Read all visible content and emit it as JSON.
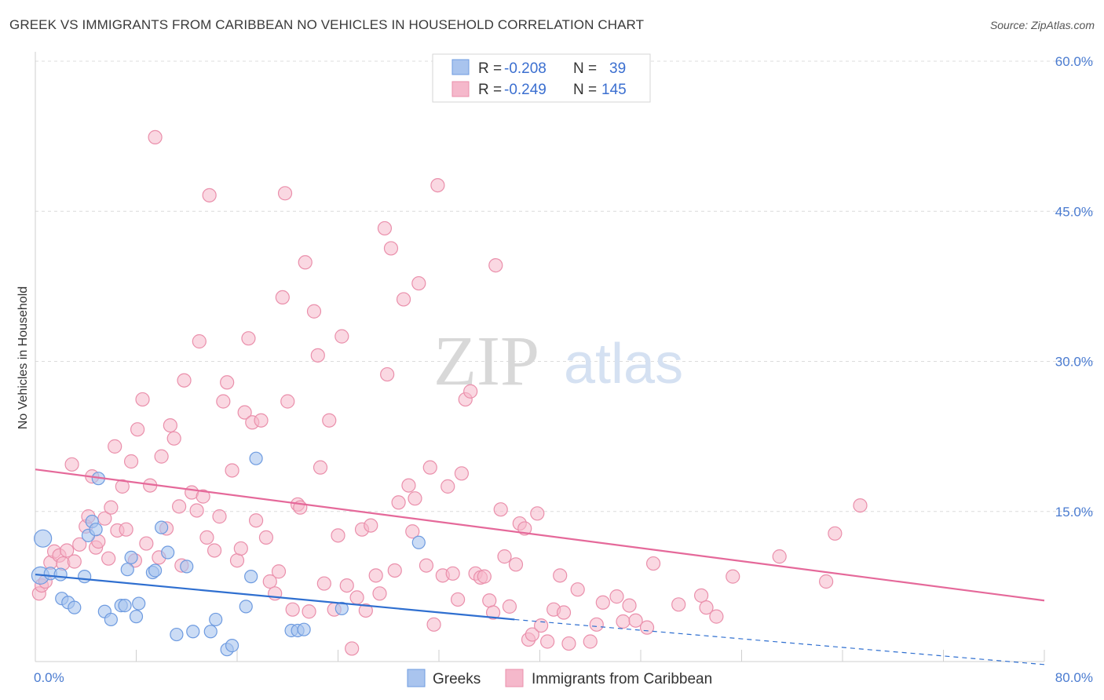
{
  "title": "GREEK VS IMMIGRANTS FROM CARIBBEAN NO VEHICLES IN HOUSEHOLD CORRELATION CHART",
  "source": "Source: ZipAtlas.com",
  "watermark": {
    "part1": "ZIP",
    "part2": "atlas"
  },
  "legend_box": {
    "rows": [
      {
        "r_label": "R = ",
        "r_value": "-0.208",
        "n_label": "N = ",
        "n_value": "39",
        "color": "#a9c4ee"
      },
      {
        "r_label": "R = ",
        "r_value": "-0.249",
        "n_label": "N = ",
        "n_value": "145",
        "color": "#f5b8cb"
      }
    ]
  },
  "bottom_legend": [
    {
      "label": "Greeks",
      "color": "#a9c4ee"
    },
    {
      "label": "Immigrants from Caribbean",
      "color": "#f5b8cb"
    }
  ],
  "chart_data": {
    "type": "scatter",
    "ylabel": "No Vehicles in Household",
    "xlim": [
      0,
      80
    ],
    "ylim": [
      0,
      60
    ],
    "x_tick_labels": [
      "0.0%",
      "80.0%"
    ],
    "y_tick_labels": [
      "15.0%",
      "30.0%",
      "45.0%",
      "60.0%"
    ],
    "y_ticks": [
      15,
      30,
      45,
      60
    ],
    "grid": "horizontal dashed",
    "colors": {
      "greeks_fill": "#a9c4ee",
      "greeks_stroke": "#6e9be0",
      "greeks_line": "#2f6fd0",
      "carib_fill": "#f5b8cb",
      "carib_stroke": "#ea8fab",
      "carib_line": "#e5699a",
      "tick_text": "#4a7bd0"
    },
    "series": [
      {
        "name": "Greeks",
        "points": [
          [
            0.6,
            12.3
          ],
          [
            0.4,
            8.6
          ],
          [
            1.2,
            8.8
          ],
          [
            2.0,
            8.7
          ],
          [
            2.1,
            6.3
          ],
          [
            2.6,
            5.9
          ],
          [
            3.1,
            5.4
          ],
          [
            3.9,
            8.5
          ],
          [
            4.2,
            12.6
          ],
          [
            4.5,
            14.0
          ],
          [
            4.8,
            13.2
          ],
          [
            5.0,
            18.3
          ],
          [
            5.5,
            5.0
          ],
          [
            6.0,
            4.2
          ],
          [
            6.8,
            5.6
          ],
          [
            7.1,
            5.6
          ],
          [
            7.3,
            9.2
          ],
          [
            7.6,
            10.4
          ],
          [
            8.0,
            4.5
          ],
          [
            8.2,
            5.8
          ],
          [
            9.3,
            8.9
          ],
          [
            9.5,
            9.1
          ],
          [
            10.0,
            13.4
          ],
          [
            10.5,
            10.9
          ],
          [
            11.2,
            2.7
          ],
          [
            12.0,
            9.5
          ],
          [
            12.5,
            3.0
          ],
          [
            13.9,
            3.0
          ],
          [
            14.3,
            4.2
          ],
          [
            15.2,
            1.2
          ],
          [
            15.6,
            1.6
          ],
          [
            16.7,
            5.5
          ],
          [
            17.1,
            8.5
          ],
          [
            17.5,
            20.3
          ],
          [
            20.3,
            3.1
          ],
          [
            20.8,
            3.1
          ],
          [
            21.3,
            3.2
          ],
          [
            24.3,
            5.3
          ],
          [
            30.4,
            11.9
          ]
        ],
        "trend": {
          "x": [
            0,
            38
          ],
          "y": [
            8.7,
            4.2
          ],
          "dashed_to": [
            80,
            -0.3
          ]
        }
      },
      {
        "name": "Immigrants from Caribbean",
        "points": [
          [
            0.3,
            6.8
          ],
          [
            0.5,
            7.6
          ],
          [
            0.8,
            8.0
          ],
          [
            1.2,
            9.9
          ],
          [
            1.5,
            11.0
          ],
          [
            1.9,
            10.6
          ],
          [
            2.2,
            9.8
          ],
          [
            2.5,
            11.1
          ],
          [
            2.9,
            19.7
          ],
          [
            3.1,
            10.0
          ],
          [
            3.5,
            11.7
          ],
          [
            4.0,
            13.5
          ],
          [
            4.2,
            14.5
          ],
          [
            4.5,
            18.5
          ],
          [
            4.8,
            11.4
          ],
          [
            5.0,
            12.0
          ],
          [
            5.5,
            14.3
          ],
          [
            5.8,
            10.3
          ],
          [
            6.0,
            15.4
          ],
          [
            6.3,
            21.5
          ],
          [
            6.5,
            13.1
          ],
          [
            6.9,
            17.5
          ],
          [
            7.2,
            13.2
          ],
          [
            7.6,
            20.0
          ],
          [
            7.9,
            10.1
          ],
          [
            8.1,
            23.2
          ],
          [
            8.5,
            26.2
          ],
          [
            8.8,
            11.8
          ],
          [
            9.1,
            17.6
          ],
          [
            9.5,
            52.4
          ],
          [
            9.8,
            10.4
          ],
          [
            10.0,
            20.5
          ],
          [
            10.4,
            13.3
          ],
          [
            10.7,
            23.6
          ],
          [
            11.0,
            22.3
          ],
          [
            11.4,
            15.5
          ],
          [
            11.6,
            9.6
          ],
          [
            11.8,
            28.1
          ],
          [
            12.4,
            16.9
          ],
          [
            12.8,
            15.1
          ],
          [
            13.0,
            32.0
          ],
          [
            13.3,
            16.5
          ],
          [
            13.6,
            12.4
          ],
          [
            13.8,
            46.6
          ],
          [
            14.2,
            11.1
          ],
          [
            14.6,
            14.5
          ],
          [
            14.9,
            26.0
          ],
          [
            15.2,
            27.9
          ],
          [
            15.6,
            19.1
          ],
          [
            16.0,
            10.1
          ],
          [
            16.3,
            11.3
          ],
          [
            16.6,
            24.9
          ],
          [
            16.9,
            32.3
          ],
          [
            17.2,
            23.9
          ],
          [
            17.5,
            14.1
          ],
          [
            17.9,
            24.1
          ],
          [
            18.3,
            12.4
          ],
          [
            18.6,
            8.0
          ],
          [
            19.0,
            6.8
          ],
          [
            19.3,
            9.0
          ],
          [
            19.6,
            36.4
          ],
          [
            19.8,
            46.8
          ],
          [
            20.0,
            26.0
          ],
          [
            20.4,
            5.2
          ],
          [
            20.8,
            15.7
          ],
          [
            21.0,
            15.4
          ],
          [
            21.4,
            39.9
          ],
          [
            21.7,
            5.0
          ],
          [
            22.1,
            35.0
          ],
          [
            22.4,
            30.6
          ],
          [
            22.6,
            19.4
          ],
          [
            22.9,
            7.8
          ],
          [
            23.3,
            24.1
          ],
          [
            23.7,
            5.2
          ],
          [
            24.0,
            12.6
          ],
          [
            24.3,
            32.5
          ],
          [
            24.7,
            7.6
          ],
          [
            25.1,
            1.3
          ],
          [
            25.5,
            6.4
          ],
          [
            25.9,
            13.2
          ],
          [
            26.2,
            5.1
          ],
          [
            26.6,
            13.6
          ],
          [
            27.0,
            8.6
          ],
          [
            27.3,
            6.8
          ],
          [
            27.7,
            43.3
          ],
          [
            27.9,
            28.7
          ],
          [
            28.2,
            41.3
          ],
          [
            28.5,
            9.1
          ],
          [
            28.8,
            15.9
          ],
          [
            29.2,
            36.2
          ],
          [
            29.6,
            17.6
          ],
          [
            29.9,
            13.0
          ],
          [
            30.1,
            16.3
          ],
          [
            30.4,
            37.8
          ],
          [
            31.0,
            9.6
          ],
          [
            31.3,
            19.4
          ],
          [
            31.6,
            3.7
          ],
          [
            31.9,
            47.6
          ],
          [
            32.3,
            8.6
          ],
          [
            32.7,
            17.5
          ],
          [
            33.1,
            8.8
          ],
          [
            33.5,
            6.2
          ],
          [
            33.8,
            18.8
          ],
          [
            34.1,
            26.2
          ],
          [
            34.5,
            27.0
          ],
          [
            34.9,
            8.8
          ],
          [
            35.3,
            8.4
          ],
          [
            35.6,
            8.5
          ],
          [
            36.0,
            6.1
          ],
          [
            36.3,
            4.9
          ],
          [
            36.5,
            39.6
          ],
          [
            36.9,
            15.2
          ],
          [
            37.2,
            10.5
          ],
          [
            37.6,
            5.5
          ],
          [
            38.1,
            9.7
          ],
          [
            38.4,
            13.8
          ],
          [
            38.8,
            13.3
          ],
          [
            39.1,
            2.2
          ],
          [
            39.4,
            2.7
          ],
          [
            39.8,
            14.8
          ],
          [
            40.1,
            3.6
          ],
          [
            40.6,
            2.0
          ],
          [
            41.1,
            5.2
          ],
          [
            41.6,
            8.6
          ],
          [
            41.9,
            4.9
          ],
          [
            42.3,
            1.8
          ],
          [
            43.0,
            7.2
          ],
          [
            44.0,
            2.0
          ],
          [
            44.5,
            3.7
          ],
          [
            45.0,
            5.9
          ],
          [
            46.1,
            6.5
          ],
          [
            46.6,
            4.0
          ],
          [
            47.1,
            5.6
          ],
          [
            47.6,
            4.1
          ],
          [
            48.5,
            3.4
          ],
          [
            49.0,
            9.8
          ],
          [
            51.0,
            5.7
          ],
          [
            52.8,
            6.6
          ],
          [
            53.2,
            5.4
          ],
          [
            54.0,
            4.5
          ],
          [
            55.3,
            8.5
          ],
          [
            59.0,
            10.5
          ],
          [
            62.7,
            8.0
          ],
          [
            63.4,
            12.8
          ],
          [
            65.4,
            15.6
          ]
        ],
        "trend": {
          "x": [
            0,
            80
          ],
          "y": [
            19.2,
            6.1
          ]
        }
      }
    ]
  }
}
